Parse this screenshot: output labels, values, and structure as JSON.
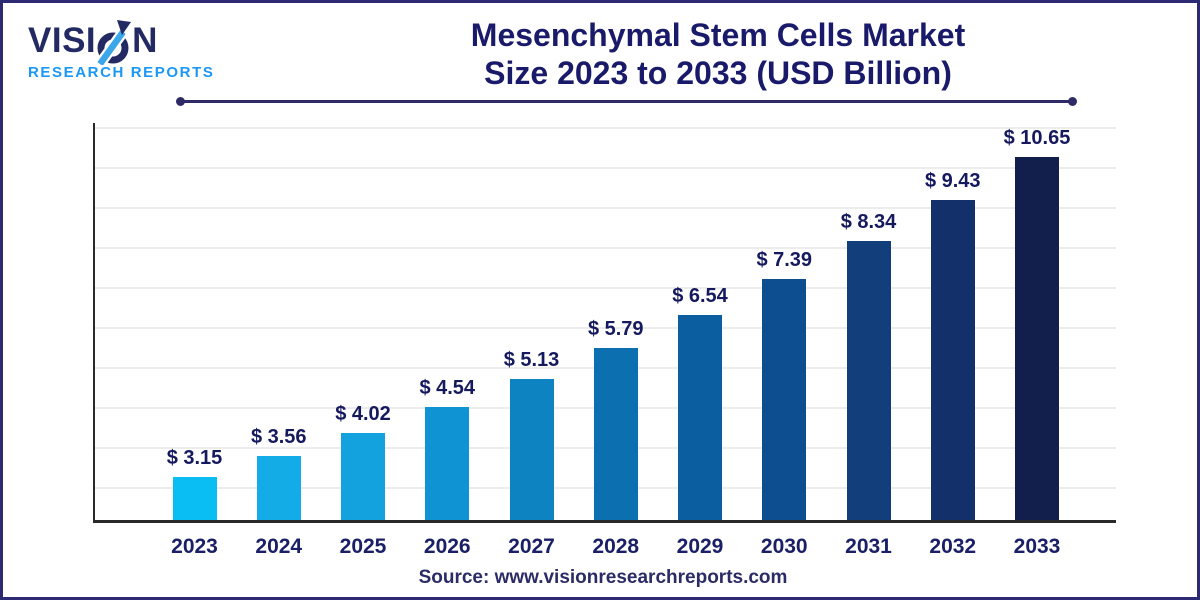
{
  "brand": {
    "word_start": "VISI",
    "word_end": "N",
    "subtitle": "RESEARCH REPORTS",
    "navy": "#232a63",
    "blue": "#1b98f5",
    "arrow_blue": "#3ba6ea"
  },
  "title": {
    "line1": "Mesenchymal Stem Cells Market",
    "line2": "Size 2023 to 2033 (USD Billion)"
  },
  "footer": {
    "source": "Source: www.visionresearchreports.com"
  },
  "chart_data": {
    "type": "bar",
    "title": "Mesenchymal Stem Cells Market Size 2023 to 2033 (USD Billion)",
    "unit": "USD Billion",
    "categories": [
      "2023",
      "2024",
      "2025",
      "2026",
      "2027",
      "2028",
      "2029",
      "2030",
      "2031",
      "2032",
      "2033"
    ],
    "values": [
      3.15,
      3.56,
      4.02,
      4.54,
      5.13,
      5.79,
      6.54,
      7.39,
      8.34,
      9.43,
      10.65
    ],
    "value_labels": [
      "$ 3.15",
      "$ 3.56",
      "$ 4.02",
      "$ 4.54",
      "$ 5.13",
      "$ 5.79",
      "$ 6.54",
      "$ 7.39",
      "$ 8.34",
      "$ 9.43",
      "$ 10.65"
    ],
    "bar_colors": [
      "#0abdf2",
      "#14ace6",
      "#13a2de",
      "#0f93d2",
      "#0d83c2",
      "#0c70b0",
      "#0b5ea0",
      "#0d4e90",
      "#123e7c",
      "#13306a",
      "#121f4d"
    ],
    "xlabel": "",
    "ylabel": "",
    "ylim": [
      2.1,
      11
    ],
    "grid": true,
    "gridline_count": 10,
    "legend": false,
    "label_color": "#15195e",
    "grid_color": "#ececec"
  }
}
